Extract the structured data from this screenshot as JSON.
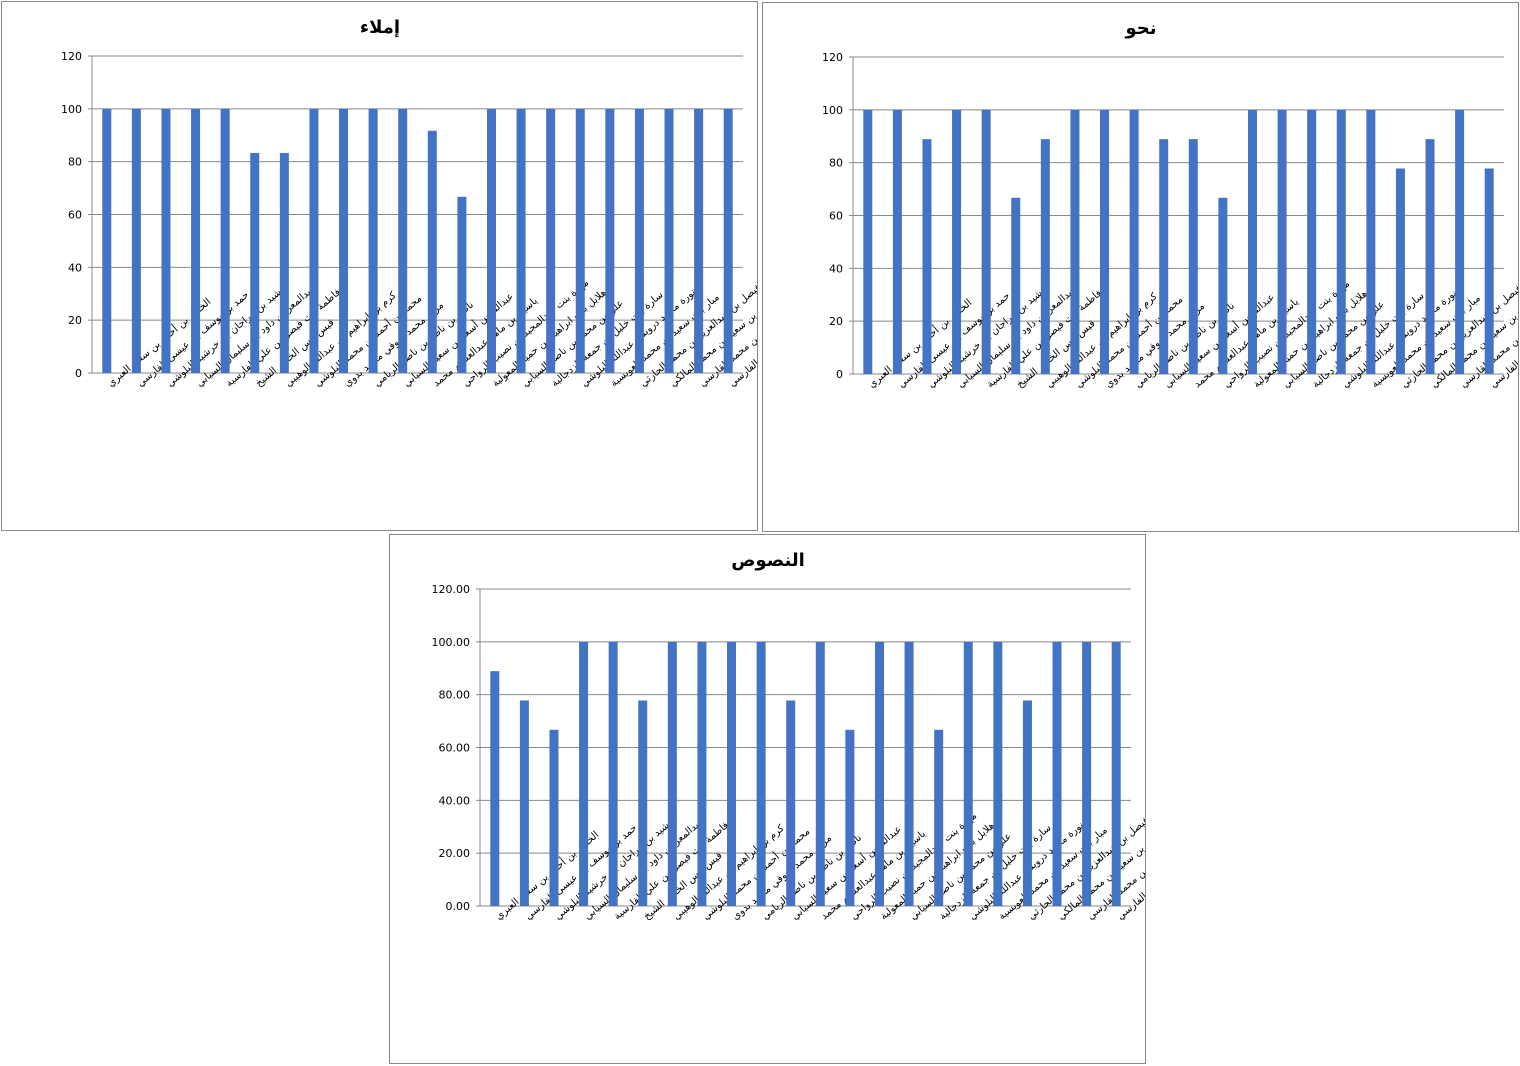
{
  "chart_data": [
    {
      "type": "bar",
      "title": "إملاء",
      "ylim": [
        0,
        120
      ],
      "yticks": [
        "0",
        "20",
        "40",
        "60",
        "80",
        "100",
        "120"
      ],
      "grid": true,
      "color": "#4472C4",
      "categories": [
        "الخليل بن أحمد بن سعيد العبري",
        "حمد بن يوسف بن عيسى الفارسي",
        "خرشيد بن مراجان بن خرشيد البلوشي",
        "عبدالمعز بن داود بن سليمان السيابي",
        "فاطمة بنت فيصل بن علي الفارسية",
        "قيس انس الخضر الشيخ",
        "كرم بن ابراهيم بن عبدالله الوهيبي",
        "محمد بن أحمد بن محمد البلوشي",
        "مريم محمد شوقي محمد بدوي",
        "ناصر بن ناظر بن ناصر الريامي",
        "عبدالله بن أسعد بن سعيد السيابي",
        "ياسين بن ماهر عبدالعظيم محمد",
        "مهرة بنت عبدالمجيد بن نصيب الرواحي",
        "هلايل بنت ابراهيم بن حميد المعولية",
        "علي بن محمد بن ناصر السيابي",
        "سارة بنت خليل بن جمعة الزدجالية",
        "نورة محمد درويش عبدالله البلوشي",
        "مبار بنت سعيد بن محمد العويسية",
        "فيصل بن عبدالعزيز بن محمد الحارثي",
        "مازن بن سعيد بن محمد المالكي",
        "عبدالله بن خالد بن محمد القارسي",
        "علي بن عبدالجليل بن علي الفارسي"
      ],
      "values": [
        100,
        100,
        100,
        100,
        100,
        83.3,
        83.3,
        100,
        100,
        100,
        100,
        91.7,
        66.7,
        100,
        100,
        100,
        100,
        100,
        100,
        100,
        100,
        100
      ]
    },
    {
      "type": "bar",
      "title": "نحو",
      "ylim": [
        0,
        120
      ],
      "yticks": [
        "0",
        "20",
        "40",
        "60",
        "80",
        "100",
        "120"
      ],
      "grid": true,
      "color": "#4472C4",
      "categories": [
        "الخليل بن أحمد بن سعيد العبري",
        "حمد بن يوسف بن عيسى الفارسي",
        "خرشيد بن مراجان بن خرشيد البلوشي",
        "عبدالمعز بن داود بن سليمان السيابي",
        "فاطمة بنت فيصل بن علي الفارسية",
        "قيس انس الخضر الشيخ",
        "كرم بن ابراهيم بن عبدالله الوهيبي",
        "محمد بن أحمد بن محمد البلوشي",
        "مريم محمد شوقي محمد بدوي",
        "ناصر بن ناظر بن ناصر الريامي",
        "عبدالله بن أسعد بن سعيد السيابي",
        "ياسين بن ماهر عبدالعظيم محمد",
        "مهرة بنت عبدالمجيد بن نصيب الرواحي",
        "هلايل بنت ابراهيم بن حميد المعولية",
        "علي بن محمد بن ناصر السيابي",
        "سارة بنت خليل بن جمعة الزدجالية",
        "نورة محمد درويش عبدالله البلوشي",
        "مبار بنت سعيد بن محمد العويسية",
        "فيصل بن عبدالعزيز بن محمد الحارثي",
        "مازن بن سعيد بن محمد المالكي",
        "عبدالله بن خالد بن محمد القارسي",
        "علي بن عبدالجليل بن علي الفارسي"
      ],
      "values": [
        100,
        100,
        88.9,
        100,
        100,
        66.7,
        88.9,
        100,
        100,
        100,
        88.9,
        88.9,
        66.7,
        100,
        100,
        100,
        100,
        100,
        77.8,
        88.9,
        100,
        77.8
      ]
    },
    {
      "type": "bar",
      "title": "النصوص",
      "ylim": [
        0,
        120
      ],
      "yticks": [
        "0.00",
        "20.00",
        "40.00",
        "60.00",
        "80.00",
        "100.00",
        "120.00"
      ],
      "grid": true,
      "color": "#4472C4",
      "categories": [
        "الخليل بن أحمد بن سعيد العبري",
        "حمد بن يوسف بن عيسى الفارسي",
        "خرشيد بن مراجان بن خرشيد البلوشي",
        "عبدالمعز بن داود بن سليمان السيابي",
        "فاطمة بنت فيصل بن علي الفارسية",
        "قيس انس الخضر الشيخ",
        "كرم بن ابراهيم بن عبدالله الوهيبي",
        "محمد بن أحمد بن محمد البلوشي",
        "مريم محمد شوقي محمد بدوي",
        "ناصر بن ناظر بن ناصر الريامي",
        "عبدالله بن أسعد بن سعيد السيابي",
        "ياسين بن ماهر عبدالعظيم محمد",
        "مهرة بنت عبدالمجيد بن نصيب الرواحي",
        "هلايل بنت ابراهيم بن حميد المعولية",
        "علي بن محمد بن ناصر السيابي",
        "سارة بنت خليل بن جمعة الزدجالية",
        "نورة محمد درويش عبدالله البلوشي",
        "مبار بنت سعيد بن محمد العويسية",
        "فيصل بن عبدالعزيز بن محمد الحارثي",
        "مازن بن سعيد بن محمد المالكي",
        "عبدالله بن خالد بن محمد القارسي",
        "علي بن عبدالجليل بن علي الفارسي"
      ],
      "values": [
        88.9,
        77.8,
        66.7,
        100,
        100,
        77.8,
        100,
        100,
        100,
        100,
        77.8,
        100,
        66.7,
        100,
        100,
        66.7,
        100,
        100,
        77.8,
        100,
        100,
        100
      ]
    }
  ]
}
